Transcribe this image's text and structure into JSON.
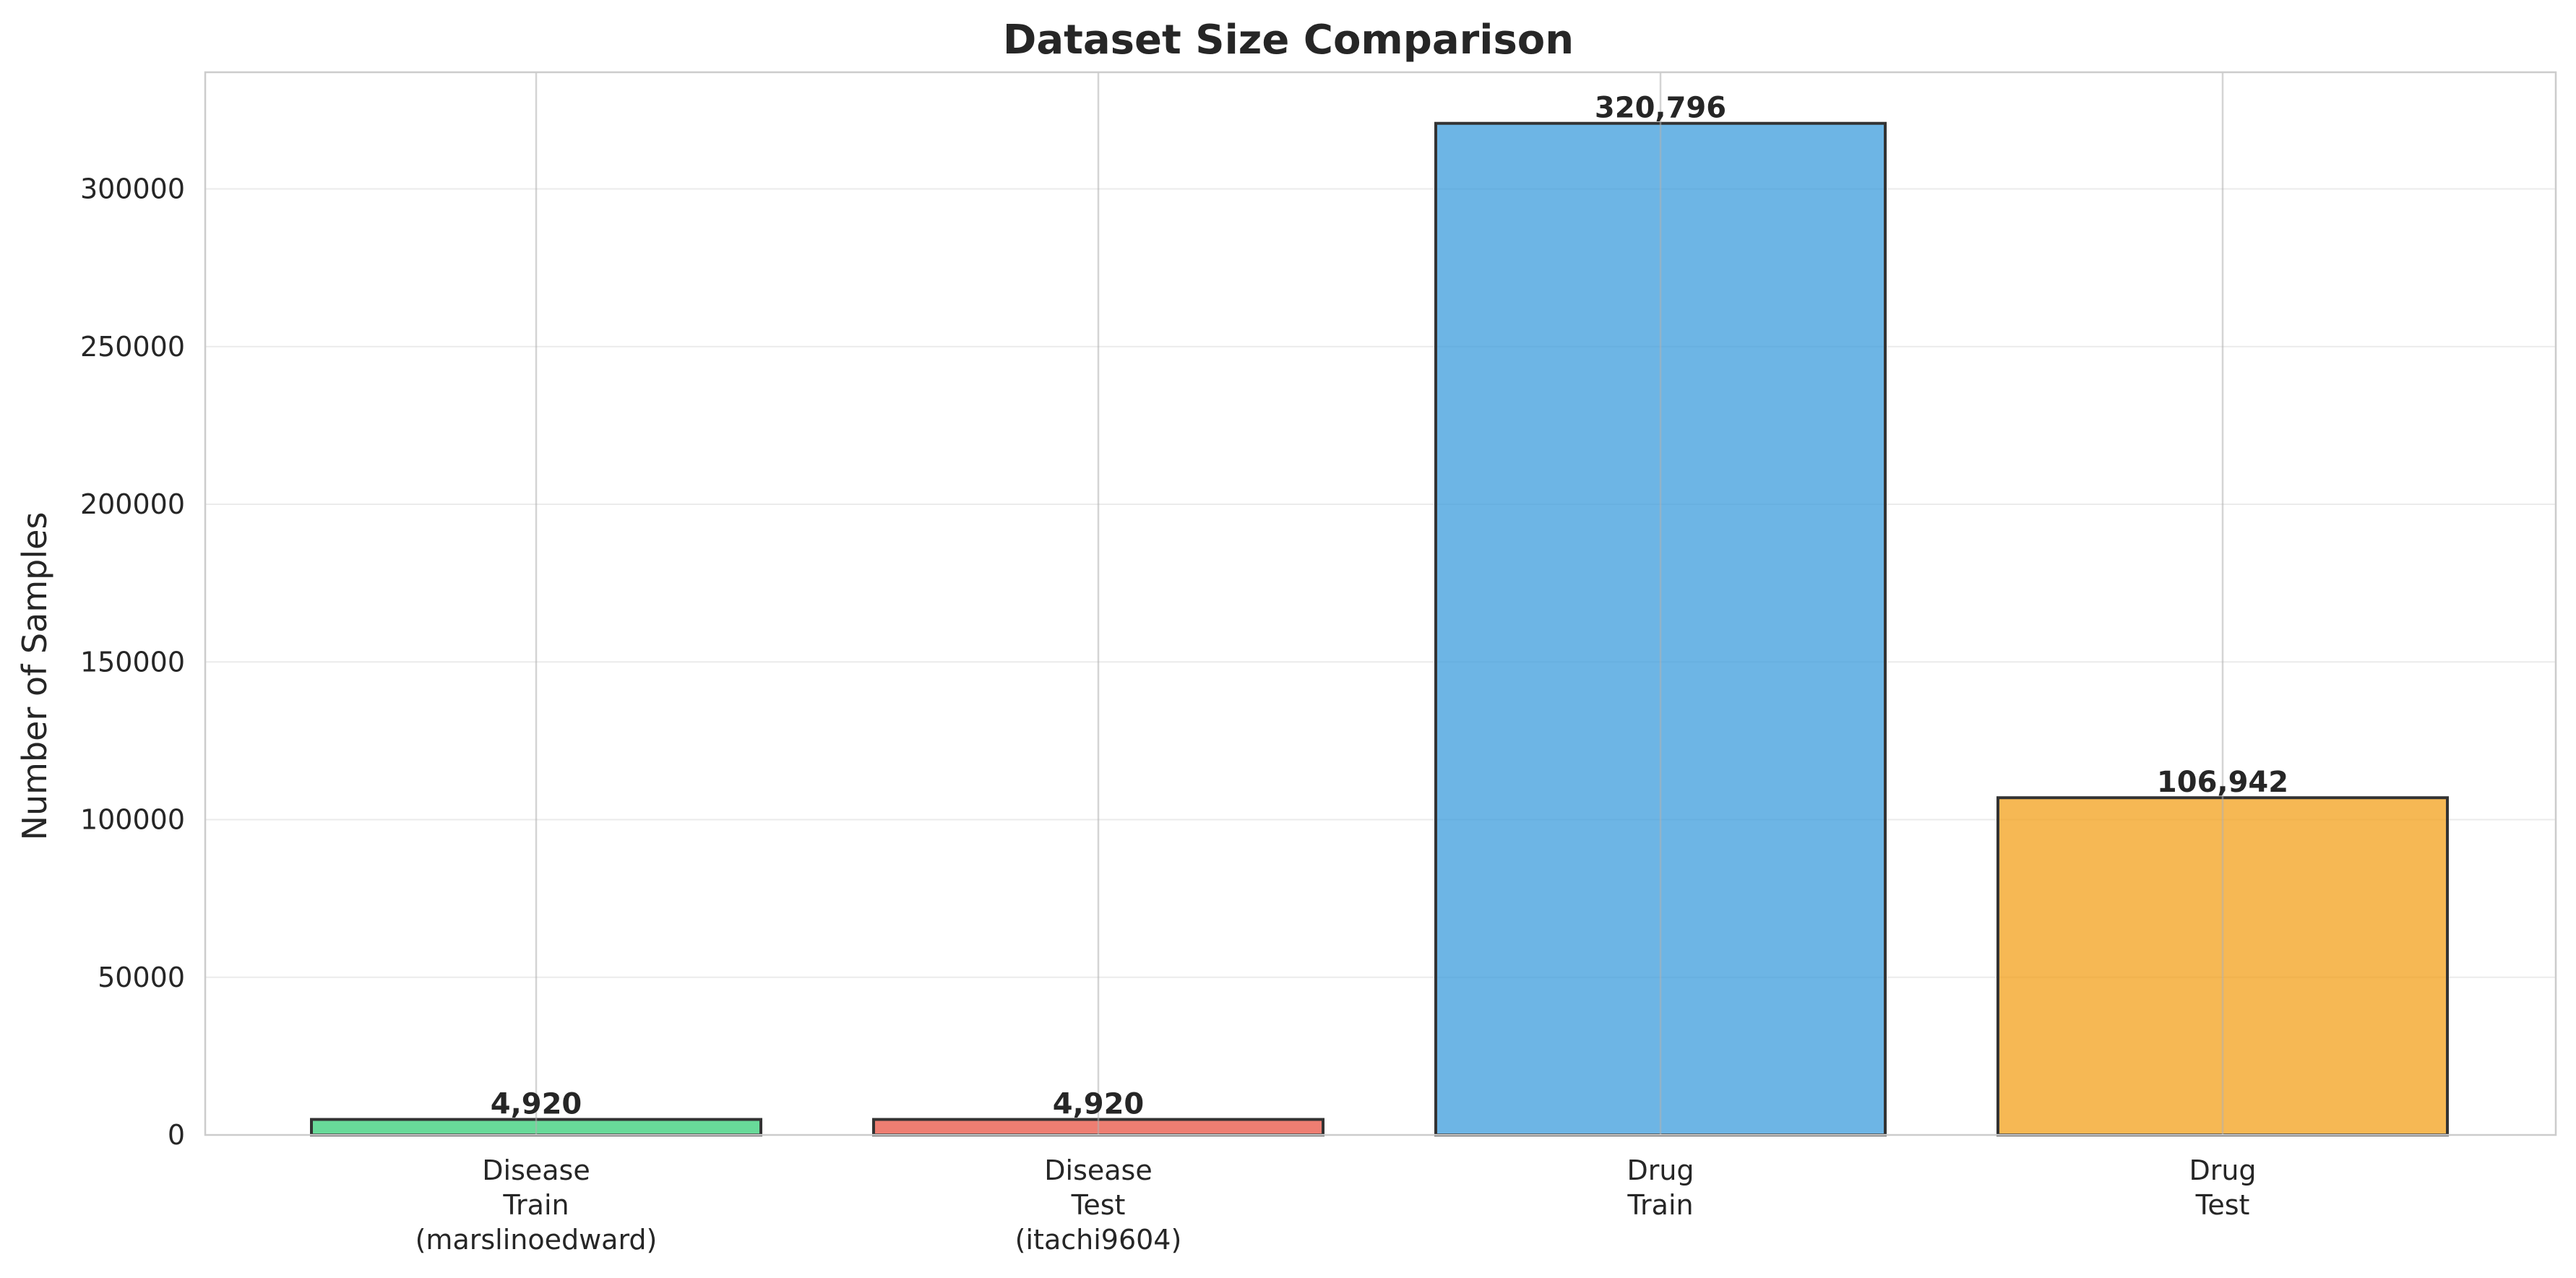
{
  "chart_data": {
    "type": "bar",
    "title": "Dataset Size Comparison",
    "xlabel": "",
    "ylabel": "Number of Samples",
    "categories": [
      [
        "Disease",
        "Train",
        "(marslinoedward)"
      ],
      [
        "Disease",
        "Test",
        "(itachi9604)"
      ],
      [
        "Drug",
        "Train"
      ],
      [
        "Drug",
        "Test"
      ]
    ],
    "values": [
      4920,
      4920,
      320796,
      106942
    ],
    "data_labels": [
      "4,920",
      "4,920",
      "320,796",
      "106,942"
    ],
    "colors": [
      "#2ecc71",
      "#e74c3c",
      "#3498db",
      "#f39c12"
    ],
    "ylim": [
      0,
      337000
    ],
    "yticks": [
      0,
      50000,
      100000,
      150000,
      200000,
      250000,
      300000
    ],
    "ytick_labels": [
      "0",
      "50000",
      "100000",
      "150000",
      "200000",
      "250000",
      "300000"
    ],
    "grid": true,
    "legend": "none"
  }
}
